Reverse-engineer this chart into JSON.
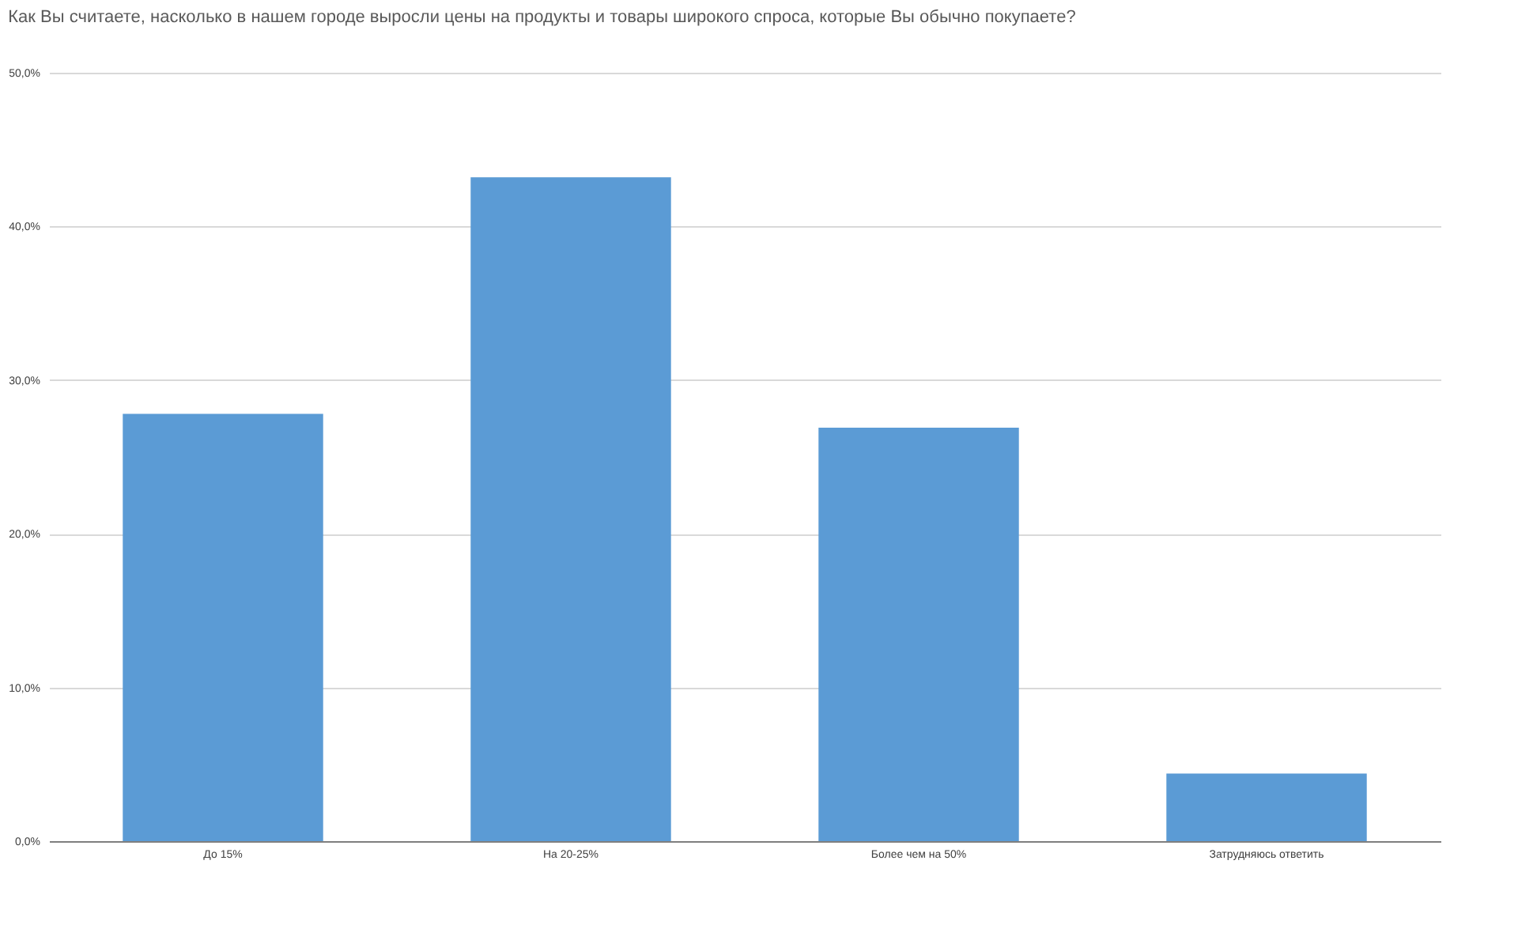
{
  "chart_data": {
    "type": "bar",
    "title": "Как Вы считаете, насколько в нашем городе выросли цены на продукты и товары широкого спроса, которые Вы обычно покупаете?",
    "categories": [
      "До 15%",
      "На 20-25%",
      "Более чем на 50%",
      "Затрудняюсь ответить"
    ],
    "values": [
      27.8,
      43.2,
      26.9,
      4.4
    ],
    "color": "#5b9bd5",
    "ylim": [
      0,
      50
    ],
    "yticks": [
      {
        "value": 0,
        "label": "0,0%"
      },
      {
        "value": 10,
        "label": "10,0%"
      },
      {
        "value": 20,
        "label": "20,0%"
      },
      {
        "value": 30,
        "label": "30,0%"
      },
      {
        "value": 40,
        "label": "40,0%"
      },
      {
        "value": 50,
        "label": "50,0%"
      }
    ],
    "grid": "y"
  }
}
